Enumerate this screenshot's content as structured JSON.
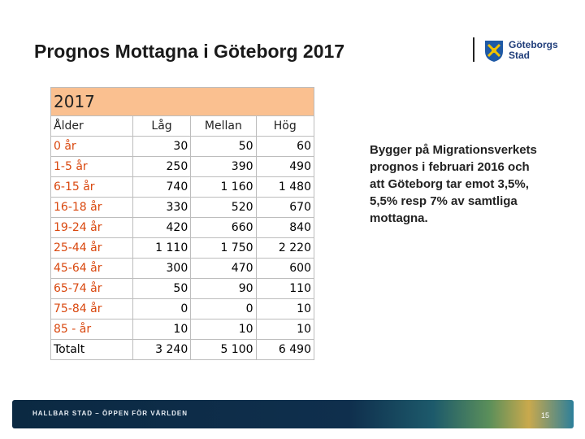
{
  "header": {
    "title": "Prognos Mottagna i Göteborg 2017",
    "logo": [
      "Göteborgs",
      "Stad"
    ]
  },
  "table": {
    "caption": "2017",
    "columns": [
      "Ålder",
      "Låg",
      "Mellan",
      "Hög"
    ],
    "rows": [
      [
        "0 år",
        "30",
        "50",
        "60"
      ],
      [
        "1-5 år",
        "250",
        "390",
        "490"
      ],
      [
        "6-15 år",
        "740",
        "1 160",
        "1 480"
      ],
      [
        "16-18 år",
        "330",
        "520",
        "670"
      ],
      [
        "19-24 år",
        "420",
        "660",
        "840"
      ],
      [
        "25-44 år",
        "1 110",
        "1 750",
        "2 220"
      ],
      [
        "45-64 år",
        "300",
        "470",
        "600"
      ],
      [
        "65-74 år",
        "50",
        "90",
        "110"
      ],
      [
        "75-84 år",
        "0",
        "0",
        "10"
      ],
      [
        "85 - år",
        "10",
        "10",
        "10"
      ],
      [
        "Totalt",
        "3 240",
        "5 100",
        "6 490"
      ]
    ]
  },
  "body": {
    "lines": [
      "Bygger på Migrationsverkets",
      "prognos i februari 2016 och",
      "att Göteborg tar emot 3,5%,",
      "5,5% resp 7% av samtliga",
      "mottagna."
    ]
  },
  "footer": {
    "text": "HALLBAR STAD – ÖPPEN FÖR VÄRLDEN",
    "page": "15"
  }
}
